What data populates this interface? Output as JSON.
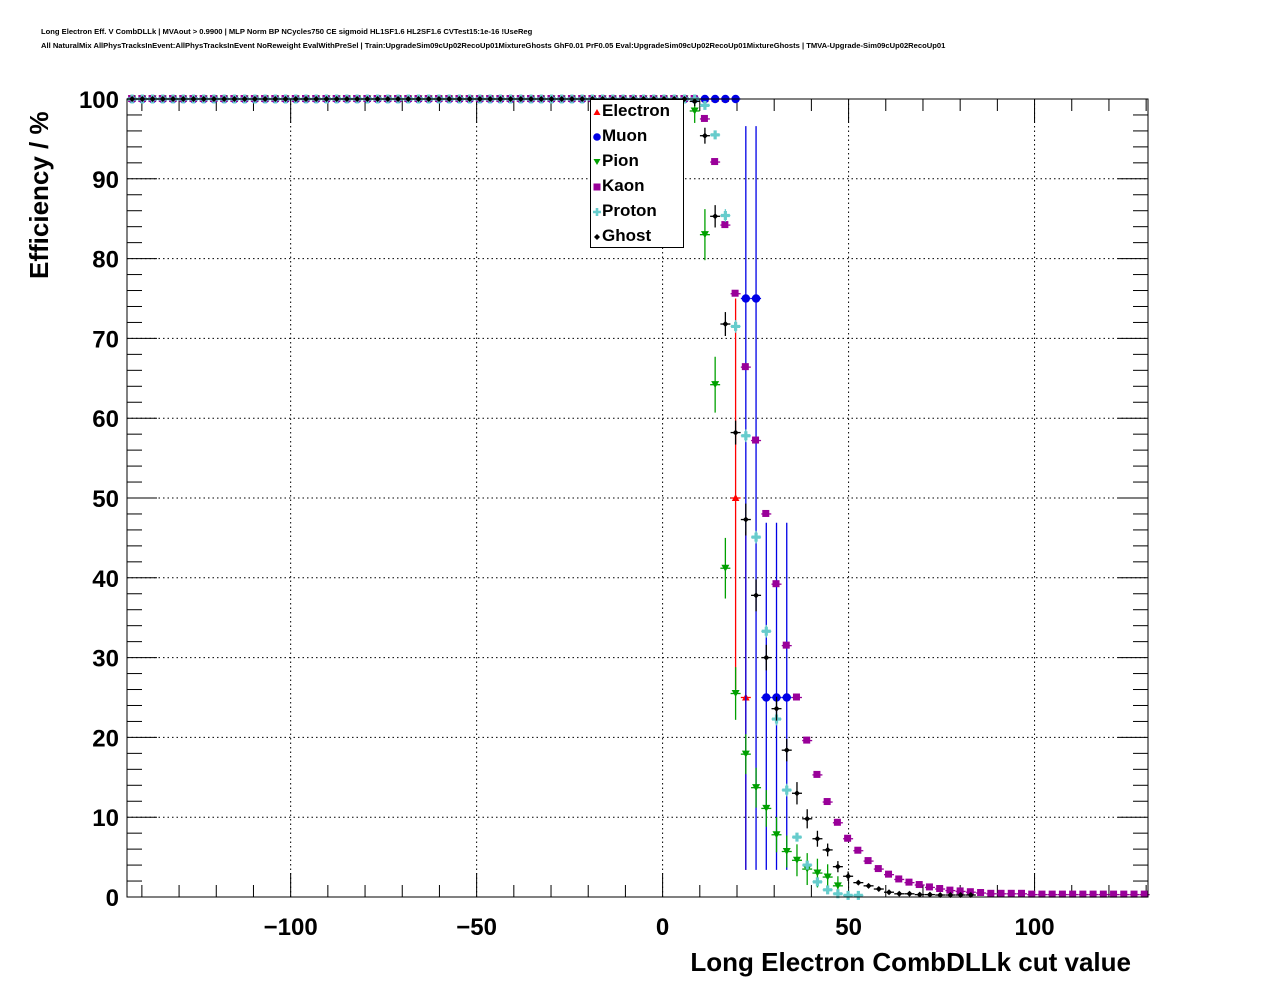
{
  "title_line1": "Long Electron Eff. V CombDLLk | MVAout > 0.9900 | MLP Norm BP NCycles750 CE sigmoid HL1SF1.6 HL2SF1.6 CVTest15:1e-16 !UseReg",
  "title_line2": "All NaturalMix AllPhysTracksInEvent:AllPhysTracksInEvent NoReweight EvalWithPreSel | Train:UpgradeSim09cUp02RecoUp01MixtureGhosts GhF0.01 PrF0.05 Eval:UpgradeSim09cUp02RecoUp01MixtureGhosts | TMVA-Upgrade-Sim09cUp02RecoUp01",
  "chart_data": {
    "type": "scatter",
    "xlabel": "Long Electron CombDLLk cut value",
    "ylabel": "Efficiency / %",
    "xlim": [
      -144,
      130.5
    ],
    "ylim": [
      0,
      100
    ],
    "grid": true,
    "legend_placement": "top-center",
    "xticks": [
      -100,
      -50,
      0,
      50,
      100
    ],
    "xtick_labels": [
      "−100",
      "−50",
      "0",
      "50",
      "100"
    ],
    "yticks": [
      0,
      10,
      20,
      30,
      40,
      50,
      60,
      70,
      80,
      90,
      100
    ],
    "ytick_labels": [
      "0",
      "10",
      "20",
      "30",
      "40",
      "50",
      "60",
      "70",
      "80",
      "90",
      "100"
    ],
    "bins": {
      "first_center": -142.625,
      "width": 2.75,
      "count": 100
    },
    "series": [
      {
        "name": "Electron",
        "color": "#ff0000",
        "marker": "triangle-up",
        "y": [
          100,
          100,
          100,
          100,
          100,
          100,
          100,
          100,
          100,
          100,
          100,
          100,
          100,
          100,
          100,
          100,
          100,
          100,
          100,
          100,
          100,
          100,
          100,
          100,
          100,
          100,
          100,
          100,
          100,
          100,
          100,
          100,
          100,
          100,
          100,
          100,
          100,
          100,
          100,
          100,
          100,
          100,
          100,
          100,
          100,
          100,
          100,
          100,
          100,
          100,
          100,
          100,
          100,
          100,
          100,
          100,
          100,
          100,
          100,
          50,
          25,
          null,
          null,
          null,
          null,
          null,
          null,
          null,
          null,
          null,
          null,
          null,
          null,
          null,
          null,
          null,
          null,
          null,
          null,
          null,
          null,
          null,
          null,
          null,
          null,
          null,
          null,
          null,
          null,
          null,
          null,
          null,
          null,
          null,
          null,
          null,
          null,
          null,
          null,
          null
        ],
        "yerr": {
          "59": [
            24,
            25
          ],
          "60": [
            21.6,
            20.8
          ]
        }
      },
      {
        "name": "Muon",
        "color": "#0000e6",
        "marker": "circle",
        "y": [
          100,
          100,
          100,
          100,
          100,
          100,
          100,
          100,
          100,
          100,
          100,
          100,
          100,
          100,
          100,
          100,
          100,
          100,
          100,
          100,
          100,
          100,
          100,
          100,
          100,
          100,
          100,
          100,
          100,
          100,
          100,
          100,
          100,
          100,
          100,
          100,
          100,
          100,
          100,
          100,
          100,
          100,
          100,
          100,
          100,
          100,
          100,
          100,
          100,
          100,
          100,
          100,
          100,
          100,
          100,
          100,
          100,
          100,
          100,
          100,
          75,
          75,
          25,
          25,
          25,
          null,
          null,
          null,
          null,
          null,
          null,
          null,
          null,
          null,
          null,
          null,
          null,
          null,
          null,
          null,
          null,
          null,
          null,
          null,
          null,
          null,
          null,
          null,
          null,
          null,
          null,
          null,
          null,
          null,
          null,
          null,
          null,
          null,
          null,
          null
        ],
        "yerr": {
          "60": [
            71.6,
            21.6
          ],
          "61": [
            71.6,
            21.6
          ],
          "62": [
            21.6,
            21.9
          ],
          "63": [
            21.6,
            21.9
          ],
          "64": [
            21.6,
            21.9
          ]
        }
      },
      {
        "name": "Pion",
        "color": "#00a000",
        "marker": "triangle-down",
        "y": [
          100,
          100,
          100,
          100,
          100,
          100,
          100,
          100,
          100,
          100,
          100,
          100,
          100,
          100,
          100,
          100,
          100,
          100,
          100,
          100,
          100,
          100,
          100,
          100,
          100,
          100,
          100,
          100,
          100,
          100,
          100,
          100,
          100,
          100,
          100,
          100,
          100,
          100,
          100,
          100,
          100,
          100,
          100,
          100,
          100,
          100,
          100,
          100,
          100,
          100,
          100,
          100,
          100,
          100,
          100,
          98.5,
          83.0,
          64.2,
          41.2,
          25.5,
          17.9,
          13.7,
          11.1,
          7.8,
          5.7,
          4.6,
          3.5,
          3.0,
          2.5,
          1.4,
          null,
          null,
          null,
          null,
          null,
          null,
          null,
          null,
          null,
          null,
          null,
          null,
          null,
          null,
          null,
          null,
          null,
          null,
          null,
          null,
          null,
          null,
          null,
          null,
          null,
          null,
          null,
          null,
          null,
          null
        ],
        "yerr": {
          "55": [
            1.5,
            1.5
          ],
          "56": [
            3.2,
            3.2
          ],
          "57": [
            3.5,
            3.5
          ],
          "58": [
            3.8,
            3.8
          ],
          "59": [
            3.3,
            3.3
          ],
          "60": [
            2.5,
            2.5
          ],
          "61": [
            2.5,
            2.5
          ],
          "62": [
            2.3,
            2.3
          ],
          "63": [
            2.2,
            2.2
          ],
          "64": [
            2.0,
            2.0
          ],
          "65": [
            2.0,
            2.0
          ],
          "66": [
            2.0,
            2.0
          ],
          "67": [
            1.8,
            1.8
          ],
          "68": [
            1.6,
            1.6
          ],
          "69": [
            1.2,
            1.2
          ]
        }
      },
      {
        "name": "Kaon",
        "color": "#990099",
        "marker": "square",
        "y": [
          100,
          100,
          100,
          100,
          100,
          100,
          100,
          100,
          100,
          100,
          100,
          100,
          100,
          100,
          100,
          100,
          100,
          100,
          100,
          100,
          100,
          100,
          100,
          100,
          100,
          100,
          100,
          100,
          100,
          100,
          100,
          100,
          100,
          100,
          100,
          100,
          100,
          100,
          100,
          100,
          100,
          100,
          100,
          100,
          100,
          100,
          100,
          100,
          100,
          100,
          100,
          100,
          100,
          100,
          100,
          100,
          97.5,
          92.1,
          84.2,
          75.6,
          66.4,
          57.2,
          48.0,
          39.2,
          31.5,
          25.0,
          19.6,
          15.3,
          11.9,
          9.3,
          7.3,
          5.8,
          4.5,
          3.5,
          2.8,
          2.2,
          1.8,
          1.5,
          1.2,
          1.0,
          0.8,
          0.7,
          0.6,
          0.5,
          0.4,
          0.4,
          0.4,
          0.4,
          0.3,
          0.3,
          0.3,
          0.3,
          0.3,
          0.3,
          0.3,
          0.3,
          0.3,
          0.3,
          0.3,
          0.3
        ],
        "yerr": {}
      },
      {
        "name": "Proton",
        "color": "#66cccc",
        "marker": "plus",
        "y": [
          100,
          100,
          100,
          100,
          100,
          100,
          100,
          100,
          100,
          100,
          100,
          100,
          100,
          100,
          100,
          100,
          100,
          100,
          100,
          100,
          100,
          100,
          100,
          100,
          100,
          100,
          100,
          100,
          100,
          100,
          100,
          100,
          100,
          100,
          100,
          100,
          100,
          100,
          100,
          100,
          100,
          100,
          100,
          100,
          100,
          100,
          100,
          100,
          100,
          100,
          100,
          100,
          100,
          100,
          100,
          100,
          99.2,
          95.5,
          85.4,
          71.5,
          57.8,
          45.1,
          33.3,
          22.3,
          13.4,
          7.5,
          4.0,
          1.9,
          0.9,
          0.4,
          0.2,
          0.2,
          null,
          null,
          null,
          null,
          null,
          null,
          null,
          null,
          null,
          null,
          null,
          null,
          null,
          null,
          null,
          null,
          null,
          null,
          null,
          null,
          null,
          null,
          null,
          null,
          null,
          null,
          null,
          null
        ],
        "yerr": {
          "58": [
            0.8,
            0.8
          ],
          "59": [
            0.8,
            0.8
          ],
          "60": [
            0.8,
            0.8
          ],
          "61": [
            0.8,
            0.8
          ],
          "62": [
            0.8,
            0.8
          ],
          "63": [
            0.8,
            0.8
          ],
          "64": [
            0.8,
            0.8
          ]
        }
      },
      {
        "name": "Ghost",
        "color": "#000000",
        "marker": "diamond",
        "y": [
          100,
          100,
          100,
          100,
          100,
          100,
          100,
          100,
          100,
          100,
          100,
          100,
          100,
          100,
          100,
          100,
          100,
          100,
          100,
          100,
          100,
          100,
          100,
          100,
          100,
          100,
          100,
          100,
          100,
          100,
          100,
          100,
          100,
          100,
          100,
          100,
          100,
          100,
          100,
          100,
          100,
          100,
          100,
          100,
          100,
          100,
          100,
          100,
          100,
          100,
          100,
          100,
          100,
          100,
          100,
          99.7,
          95.4,
          85.3,
          71.8,
          58.2,
          47.3,
          37.8,
          30.0,
          23.6,
          18.4,
          13.0,
          9.8,
          7.3,
          5.9,
          3.8,
          2.6,
          1.8,
          1.4,
          1.0,
          0.6,
          0.4,
          0.4,
          0.3,
          0.3,
          0.25,
          0.25,
          0.25,
          0.25,
          null,
          null,
          null,
          null,
          null,
          null,
          null,
          null,
          null,
          null,
          null,
          null,
          null,
          null,
          null,
          null,
          null
        ],
        "yerr": {
          "55": [
            0.6,
            0.6
          ],
          "56": [
            1.0,
            1.0
          ],
          "57": [
            1.4,
            1.4
          ],
          "58": [
            1.5,
            1.5
          ],
          "59": [
            1.5,
            1.5
          ],
          "60": [
            2.0,
            2.0
          ],
          "61": [
            2.0,
            2.0
          ],
          "62": [
            1.6,
            1.6
          ],
          "63": [
            1.5,
            1.5
          ],
          "64": [
            1.4,
            1.4
          ],
          "65": [
            1.4,
            1.4
          ],
          "66": [
            1.2,
            1.2
          ],
          "67": [
            1.0,
            1.0
          ],
          "68": [
            0.8,
            0.8
          ],
          "69": [
            0.7,
            0.7
          ],
          "70": [
            0.6,
            0.6
          ]
        }
      }
    ]
  }
}
